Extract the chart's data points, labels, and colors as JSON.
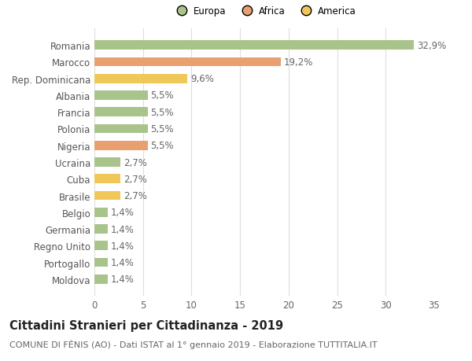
{
  "categories": [
    "Moldova",
    "Portogallo",
    "Regno Unito",
    "Germania",
    "Belgio",
    "Brasile",
    "Cuba",
    "Ucraina",
    "Nigeria",
    "Polonia",
    "Francia",
    "Albania",
    "Rep. Dominicana",
    "Marocco",
    "Romania"
  ],
  "values": [
    1.4,
    1.4,
    1.4,
    1.4,
    1.4,
    2.7,
    2.7,
    2.7,
    5.5,
    5.5,
    5.5,
    5.5,
    9.6,
    19.2,
    32.9
  ],
  "colors": [
    "#a8c48a",
    "#a8c48a",
    "#a8c48a",
    "#a8c48a",
    "#a8c48a",
    "#f0c85a",
    "#f0c85a",
    "#a8c48a",
    "#e8a070",
    "#a8c48a",
    "#a8c48a",
    "#a8c48a",
    "#f0c85a",
    "#e8a070",
    "#a8c48a"
  ],
  "labels": [
    "1,4%",
    "1,4%",
    "1,4%",
    "1,4%",
    "1,4%",
    "2,7%",
    "2,7%",
    "2,7%",
    "5,5%",
    "5,5%",
    "5,5%",
    "5,5%",
    "9,6%",
    "19,2%",
    "32,9%"
  ],
  "legend_labels": [
    "Europa",
    "Africa",
    "America"
  ],
  "legend_colors": [
    "#a8c48a",
    "#e8a070",
    "#f0c85a"
  ],
  "title": "Cittadini Stranieri per Cittadinanza - 2019",
  "subtitle": "COMUNE DI FÉNIS (AO) - Dati ISTAT al 1° gennaio 2019 - Elaborazione TUTTITALIA.IT",
  "xlim": [
    0,
    35
  ],
  "xticks": [
    0,
    5,
    10,
    15,
    20,
    25,
    30,
    35
  ],
  "bg_color": "#ffffff",
  "grid_color": "#dddddd",
  "bar_height": 0.55,
  "title_fontsize": 10.5,
  "subtitle_fontsize": 8,
  "tick_fontsize": 8.5,
  "label_fontsize": 8.5
}
